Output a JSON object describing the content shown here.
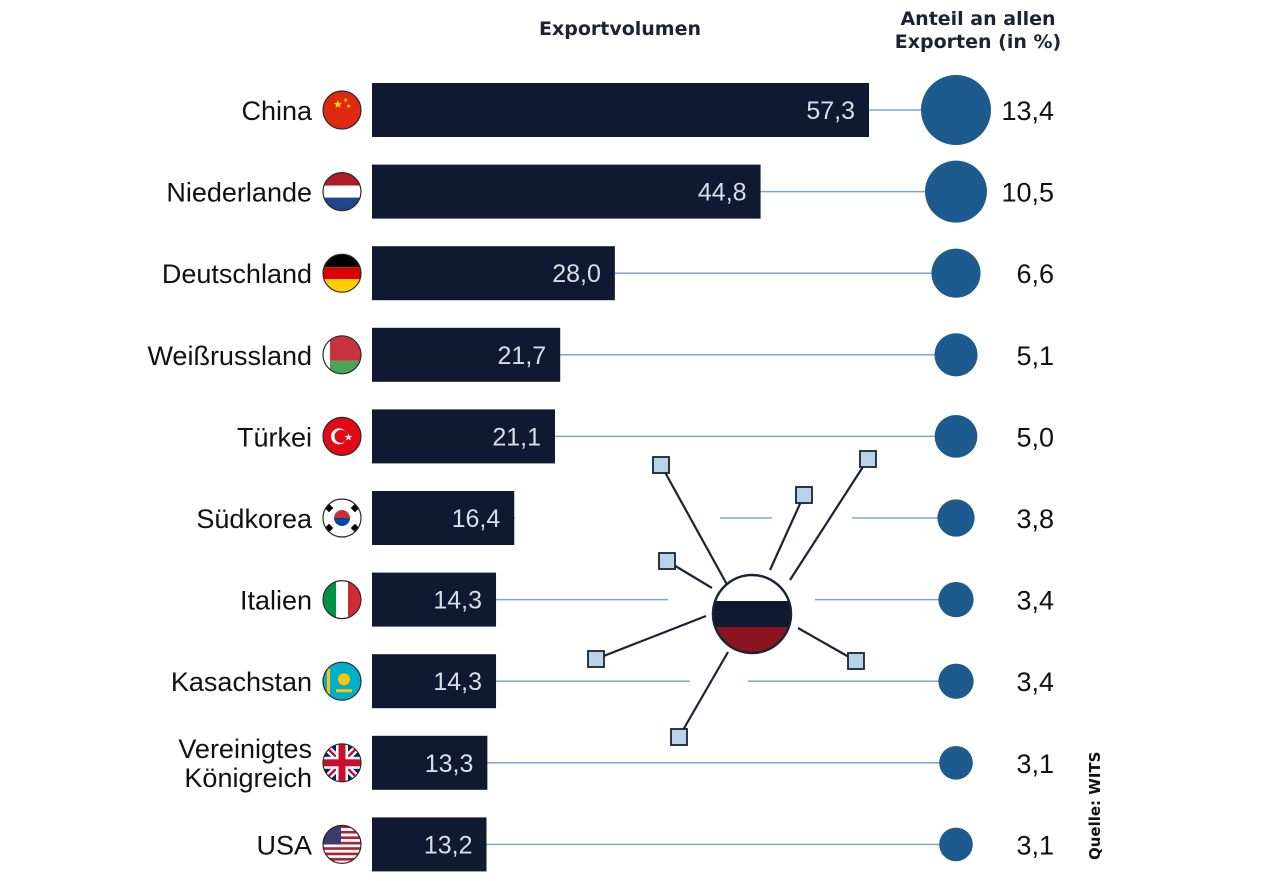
{
  "headers": {
    "volume": "Exportvolumen",
    "share": "Anteil an allen Exporten (in %)"
  },
  "source": "Quelle: WITS",
  "colors": {
    "bar": "#0f1932",
    "bar_text": "#d9dde6",
    "connector": "#7ca6cc",
    "dot": "#1d5a8e",
    "text": "#111111"
  },
  "chart_data": {
    "type": "bar",
    "orientation": "horizontal",
    "categories": [
      "China",
      "Niederlande",
      "Deutschland",
      "Weißrussland",
      "Türkei",
      "Südkorea",
      "Italien",
      "Kasachstan",
      "Vereinigtes Königreich",
      "USA"
    ],
    "series": [
      {
        "name": "Exportvolumen",
        "values": [
          57.3,
          44.8,
          28.0,
          21.7,
          21.1,
          16.4,
          14.3,
          14.3,
          13.3,
          13.2
        ]
      },
      {
        "name": "Anteil an allen Exporten (in %)",
        "values": [
          13.4,
          10.5,
          6.6,
          5.1,
          5.0,
          3.8,
          3.4,
          3.4,
          3.1,
          3.1
        ]
      }
    ],
    "value_labels": [
      "57,3",
      "44,8",
      "28,0",
      "21,7",
      "21,1",
      "16,4",
      "14,3",
      "14,3",
      "13,3",
      "13,2"
    ],
    "share_labels": [
      "13,4",
      "10,5",
      "6,6",
      "5,1",
      "5,0",
      "3,8",
      "3,4",
      "3,4",
      "3,1",
      "3,1"
    ],
    "flag_icons": [
      "china-flag-icon",
      "netherlands-flag-icon",
      "germany-flag-icon",
      "belarus-flag-icon",
      "turkey-flag-icon",
      "south-korea-flag-icon",
      "italy-flag-icon",
      "kazakhstan-flag-icon",
      "uk-flag-icon",
      "usa-flag-icon"
    ],
    "center_icon": "russia-flag-network-icon"
  }
}
